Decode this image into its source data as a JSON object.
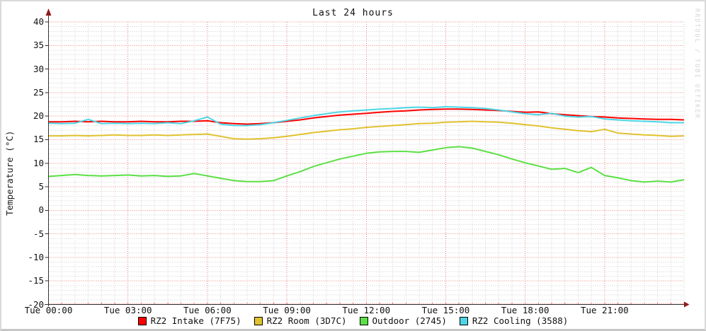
{
  "title": "Last 24 hours",
  "watermark": "RRDTOOL / TOBI OETIKER",
  "colors": {
    "intake": "#fe0000",
    "room": "#e0c22f",
    "outdoor": "#5be044",
    "cooling": "#4ed5e5",
    "grid_major": "#f07f7f",
    "grid_minor": "#cfcfcf",
    "axis": "#333333",
    "arrow": "#8f1a1a"
  },
  "chart_data": {
    "type": "line",
    "title": "Last 24 hours",
    "xlabel": "",
    "ylabel": "Temperature (°C)",
    "ylim": [
      -20,
      40
    ],
    "y_major_step": 5,
    "y_minor_step": 1,
    "x_hours": 24,
    "x_major_step_hours": 3,
    "x_minor_step_hours": 0.5,
    "x_step_hours": 0.5,
    "grid": true,
    "legend_position": "bottom",
    "y_tick_labels": [
      "40",
      "35",
      "30",
      "25",
      "20",
      "15",
      "10",
      "5",
      "0",
      "-5",
      "-10",
      "-15",
      "-20"
    ],
    "x_tick_labels": [
      "Tue 00:00",
      "Tue 03:00",
      "Tue 06:00",
      "Tue 09:00",
      "Tue 12:00",
      "Tue 15:00",
      "Tue 18:00",
      "Tue 21:00"
    ],
    "series": [
      {
        "name": "RZ2 Intake (7F75)",
        "color": "#fe0000",
        "values": [
          18.8,
          18.8,
          18.9,
          18.8,
          18.9,
          18.8,
          18.8,
          18.9,
          18.8,
          18.8,
          18.9,
          18.9,
          19.0,
          18.6,
          18.4,
          18.3,
          18.4,
          18.6,
          18.9,
          19.2,
          19.6,
          19.9,
          20.2,
          20.4,
          20.6,
          20.8,
          21.0,
          21.1,
          21.3,
          21.4,
          21.5,
          21.5,
          21.4,
          21.3,
          21.2,
          21.0,
          20.8,
          20.9,
          20.5,
          20.3,
          20.1,
          19.9,
          19.8,
          19.6,
          19.5,
          19.4,
          19.3,
          19.3,
          19.2
        ]
      },
      {
        "name": "RZ2 Room (3D7C)",
        "color": "#e0c22f",
        "values": [
          15.8,
          15.8,
          15.9,
          15.8,
          15.9,
          16.0,
          15.9,
          15.9,
          16.0,
          15.9,
          16.0,
          16.1,
          16.2,
          15.7,
          15.2,
          15.1,
          15.2,
          15.4,
          15.7,
          16.1,
          16.5,
          16.8,
          17.1,
          17.3,
          17.6,
          17.8,
          18.0,
          18.2,
          18.4,
          18.5,
          18.7,
          18.8,
          18.9,
          18.8,
          18.7,
          18.5,
          18.2,
          17.9,
          17.5,
          17.2,
          16.9,
          16.7,
          17.2,
          16.4,
          16.2,
          16.0,
          15.9,
          15.7,
          15.8
        ]
      },
      {
        "name": "Outdoor (2745)",
        "color": "#5be044",
        "values": [
          7.2,
          7.4,
          7.6,
          7.4,
          7.3,
          7.4,
          7.5,
          7.3,
          7.4,
          7.2,
          7.3,
          7.8,
          7.3,
          6.8,
          6.3,
          6.1,
          6.1,
          6.3,
          7.3,
          8.2,
          9.3,
          10.1,
          10.9,
          11.5,
          12.1,
          12.4,
          12.5,
          12.5,
          12.3,
          12.8,
          13.3,
          13.5,
          13.2,
          12.5,
          11.8,
          10.9,
          10.1,
          9.4,
          8.7,
          8.9,
          8.0,
          9.1,
          7.4,
          6.9,
          6.3,
          6.0,
          6.2,
          6.0,
          6.5
        ]
      },
      {
        "name": "RZ2 Cooling (3588)",
        "color": "#4ed5e5",
        "values": [
          18.5,
          18.4,
          18.5,
          19.3,
          18.4,
          18.5,
          18.4,
          18.5,
          18.4,
          18.6,
          18.4,
          19.0,
          19.8,
          18.3,
          18.0,
          18.0,
          18.2,
          18.6,
          19.1,
          19.6,
          20.1,
          20.5,
          20.9,
          21.1,
          21.3,
          21.5,
          21.6,
          21.8,
          21.9,
          21.8,
          22.0,
          21.9,
          21.8,
          21.6,
          21.3,
          20.9,
          20.5,
          20.3,
          20.6,
          20.0,
          19.8,
          19.9,
          19.4,
          19.2,
          19.0,
          18.9,
          18.8,
          18.6,
          18.6
        ]
      }
    ]
  }
}
